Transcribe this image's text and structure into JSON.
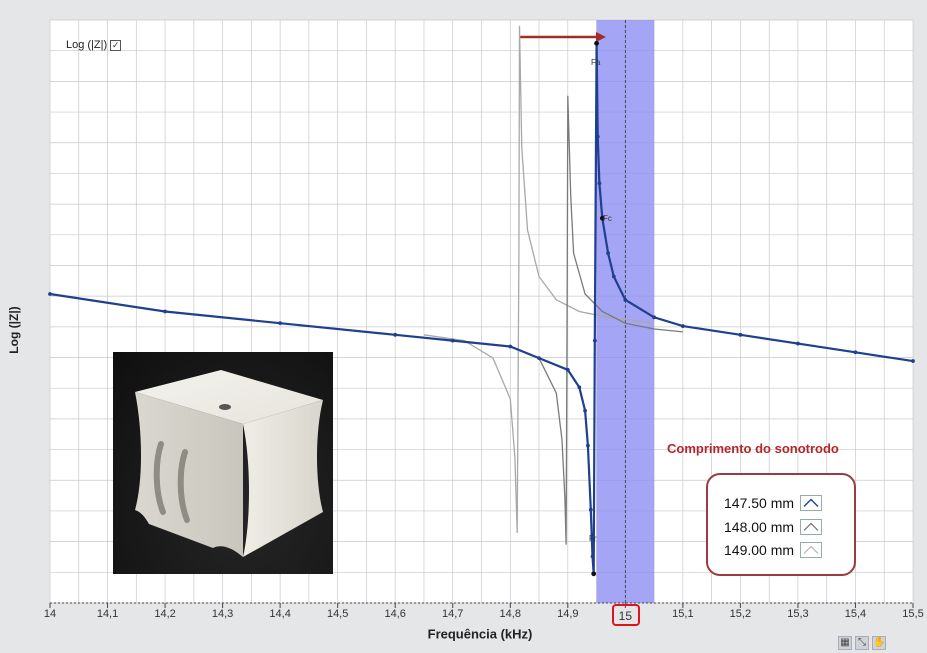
{
  "chart_data": {
    "type": "line",
    "toggle_label": "Log (|Z|)",
    "ylabel": "Log (|Z|)",
    "xlabel": "Frequência (kHz)",
    "xlim": [
      14,
      15.5
    ],
    "y_scale": "log",
    "ylim_normalized": [
      0,
      1
    ],
    "x_ticks": [
      "14",
      "14,1",
      "14,2",
      "14,3",
      "14,4",
      "14,5",
      "14,6",
      "14,7",
      "14,8",
      "14,9",
      "15",
      "15,1",
      "15,2",
      "15,3",
      "15,4",
      "15,5"
    ],
    "grid": true,
    "highlight_band_khz": [
      14.95,
      15.05
    ],
    "highlight_marker_khz": 15.0,
    "highlighted_tick": "15",
    "annotation_title": "Comprimento do sonotrodo",
    "series": [
      {
        "name": "147.50 mm",
        "color": "#1f3f8f",
        "resonance_khz": 14.945,
        "antiresonance_khz": 14.95,
        "points": [
          [
            14.0,
            0.53
          ],
          [
            14.2,
            0.5
          ],
          [
            14.4,
            0.48
          ],
          [
            14.6,
            0.46
          ],
          [
            14.7,
            0.45
          ],
          [
            14.8,
            0.44
          ],
          [
            14.85,
            0.42
          ],
          [
            14.9,
            0.4
          ],
          [
            14.92,
            0.37
          ],
          [
            14.93,
            0.33
          ],
          [
            14.935,
            0.27
          ],
          [
            14.94,
            0.16
          ],
          [
            14.943,
            0.08
          ],
          [
            14.945,
            0.05
          ],
          [
            14.947,
            0.45
          ],
          [
            14.95,
            0.96
          ],
          [
            14.952,
            0.8
          ],
          [
            14.955,
            0.72
          ],
          [
            14.96,
            0.66
          ],
          [
            14.97,
            0.6
          ],
          [
            14.98,
            0.56
          ],
          [
            15.0,
            0.52
          ],
          [
            15.05,
            0.49
          ],
          [
            15.1,
            0.475
          ],
          [
            15.2,
            0.46
          ],
          [
            15.3,
            0.445
          ],
          [
            15.4,
            0.43
          ],
          [
            15.5,
            0.415
          ]
        ]
      },
      {
        "name": "148.00 mm",
        "color": "#7a7a7a",
        "points": [
          [
            14.7,
            0.45
          ],
          [
            14.8,
            0.44
          ],
          [
            14.85,
            0.42
          ],
          [
            14.88,
            0.36
          ],
          [
            14.89,
            0.28
          ],
          [
            14.895,
            0.18
          ],
          [
            14.897,
            0.1
          ],
          [
            14.899,
            0.55
          ],
          [
            14.9,
            0.87
          ],
          [
            14.905,
            0.7
          ],
          [
            14.91,
            0.6
          ],
          [
            14.93,
            0.53
          ],
          [
            14.96,
            0.5
          ],
          [
            15.0,
            0.48
          ],
          [
            15.05,
            0.47
          ],
          [
            15.1,
            0.465
          ]
        ]
      },
      {
        "name": "149.00 mm",
        "color": "#a8a8a8",
        "points": [
          [
            14.65,
            0.46
          ],
          [
            14.72,
            0.45
          ],
          [
            14.77,
            0.42
          ],
          [
            14.8,
            0.35
          ],
          [
            14.808,
            0.25
          ],
          [
            14.812,
            0.12
          ],
          [
            14.815,
            0.6
          ],
          [
            14.816,
            0.99
          ],
          [
            14.82,
            0.78
          ],
          [
            14.83,
            0.64
          ],
          [
            14.85,
            0.56
          ],
          [
            14.88,
            0.52
          ],
          [
            14.92,
            0.5
          ],
          [
            14.97,
            0.49
          ],
          [
            15.05,
            0.48
          ]
        ]
      }
    ],
    "markers": [
      {
        "label": "Fa",
        "series": "147.50 mm",
        "x": 14.95,
        "y": 0.96
      },
      {
        "label": "Fc",
        "series": "147.50 mm",
        "x": 14.96,
        "y": 0.66
      },
      {
        "label": "Fr",
        "series": "147.50 mm",
        "x": 14.945,
        "y": 0.05
      }
    ]
  },
  "colors": {
    "band": "#8c8cf2",
    "arrow": "#a12d2b",
    "highlight_box": "#e0141c",
    "annotation": "#b3262c",
    "legend_border": "#9b3a3f",
    "plot_bg": "#ffffff",
    "grid": "#c7c9cb"
  },
  "icons": [
    "checkbox-checked-icon",
    "arrow-right-icon",
    "grid-icon",
    "zoom-icon",
    "pan-hand-icon"
  ]
}
